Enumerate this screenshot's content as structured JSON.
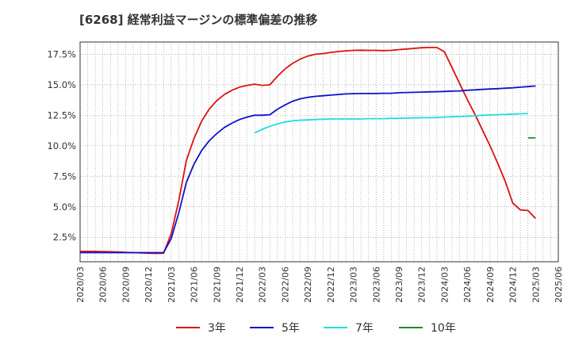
{
  "chart_data": {
    "type": "line",
    "title": "[6268]  経常利益マージンの標準偏差の推移",
    "xlabel": "",
    "ylabel": "",
    "ylim": [
      0.5,
      18.5
    ],
    "yticks": [
      2.5,
      5.0,
      7.5,
      10.0,
      12.5,
      15.0,
      17.5
    ],
    "ytick_labels": [
      "2.5%",
      "5.0%",
      "7.5%",
      "10.0%",
      "12.5%",
      "15.0%",
      "17.5%"
    ],
    "x_range": [
      "2020/03",
      "2025/06"
    ],
    "xtick_labels": [
      "2020/03",
      "2020/06",
      "2020/09",
      "2020/12",
      "2021/03",
      "2021/06",
      "2021/09",
      "2021/12",
      "2022/03",
      "2022/06",
      "2022/09",
      "2022/12",
      "2023/03",
      "2023/06",
      "2023/09",
      "2023/12",
      "2024/03",
      "2024/06",
      "2024/09",
      "2024/12",
      "2025/03",
      "2025/06"
    ],
    "grid": true,
    "legend_position": "bottom",
    "series": [
      {
        "name": "3年",
        "color": "#dd1111",
        "start": "2020/03",
        "values": [
          1.35,
          1.35,
          1.35,
          1.33,
          1.32,
          1.3,
          1.27,
          1.25,
          1.22,
          1.2,
          1.18,
          1.2,
          2.8,
          5.5,
          8.8,
          10.6,
          12.0,
          13.0,
          13.7,
          14.2,
          14.55,
          14.8,
          14.95,
          15.05,
          14.95,
          15.0,
          15.7,
          16.3,
          16.75,
          17.1,
          17.35,
          17.5,
          17.55,
          17.65,
          17.72,
          17.78,
          17.82,
          17.83,
          17.82,
          17.82,
          17.8,
          17.82,
          17.88,
          17.93,
          17.98,
          18.03,
          18.05,
          18.05,
          17.7,
          16.4,
          15.1,
          13.8,
          12.6,
          11.3,
          10.0,
          8.6,
          7.1,
          5.3,
          4.75,
          4.7,
          4.05
        ]
      },
      {
        "name": "5年",
        "color": "#1111cc",
        "start": "2020/03",
        "values": [
          1.25,
          1.25,
          1.25,
          1.25,
          1.25,
          1.25,
          1.25,
          1.25,
          1.25,
          1.25,
          1.25,
          1.25,
          2.4,
          4.5,
          7.0,
          8.5,
          9.6,
          10.4,
          11.0,
          11.5,
          11.85,
          12.15,
          12.35,
          12.5,
          12.5,
          12.55,
          13.0,
          13.35,
          13.65,
          13.85,
          13.97,
          14.05,
          14.1,
          14.15,
          14.2,
          14.25,
          14.27,
          14.28,
          14.28,
          14.28,
          14.3,
          14.3,
          14.35,
          14.37,
          14.38,
          14.4,
          14.42,
          14.43,
          14.45,
          14.48,
          14.5,
          14.55,
          14.58,
          14.62,
          14.65,
          14.68,
          14.72,
          14.75,
          14.8,
          14.85,
          14.9
        ]
      },
      {
        "name": "7年",
        "color": "#22dddd",
        "start": "2022/02",
        "values": [
          11.05,
          11.35,
          11.6,
          11.8,
          11.95,
          12.05,
          12.1,
          12.12,
          12.15,
          12.18,
          12.2,
          12.2,
          12.2,
          12.2,
          12.2,
          12.22,
          12.22,
          12.22,
          12.25,
          12.25,
          12.27,
          12.28,
          12.3,
          12.3,
          12.32,
          12.35,
          12.38,
          12.4,
          12.42,
          12.45,
          12.5,
          12.52,
          12.55,
          12.57,
          12.6,
          12.62,
          12.65
        ]
      },
      {
        "name": "10年",
        "color": "#228833",
        "start": "2025/02",
        "values": [
          10.65,
          10.65
        ]
      }
    ]
  }
}
